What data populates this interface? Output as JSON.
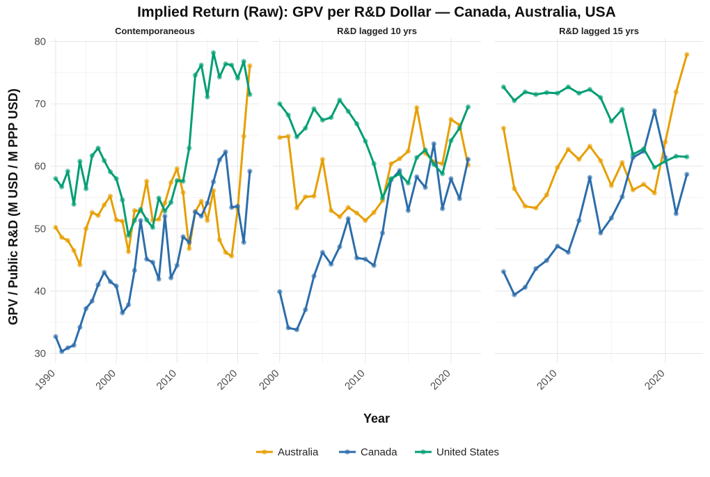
{
  "chart_data": {
    "type": "line",
    "title": "Implied Return (Raw): GPV per R&D Dollar — Canada, Australia, USA",
    "xlabel": "Year",
    "ylabel": "GPV / Public R&D (M USD / M PPP USD)",
    "ylim": [
      28.5,
      80.5
    ],
    "y_ticks": [
      30,
      40,
      50,
      60,
      70,
      80
    ],
    "grid": true,
    "legend_position": "bottom",
    "legend": [
      {
        "name": "Australia",
        "color": "#E69F00"
      },
      {
        "name": "Canada",
        "color": "#2C6DAA"
      },
      {
        "name": "United States",
        "color": "#009E73"
      }
    ],
    "panels": [
      {
        "strip": "Contemporaneous",
        "xlim": [
          1989.2,
          2023.5
        ],
        "x_ticks": [
          1990,
          2000,
          2010,
          2020
        ],
        "series": [
          {
            "name": "Australia",
            "x": [
              1990,
              1991,
              1992,
              1993,
              1994,
              1995,
              1996,
              1997,
              1998,
              1999,
              2000,
              2001,
              2002,
              2003,
              2004,
              2005,
              2006,
              2007,
              2008,
              2009,
              2010,
              2011,
              2012,
              2013,
              2014,
              2015,
              2016,
              2017,
              2018,
              2019,
              2020,
              2021,
              2022
            ],
            "y": [
              50.2,
              48.6,
              48.1,
              46.5,
              44.2,
              50.0,
              52.6,
              52.1,
              53.8,
              55.2,
              51.4,
              51.2,
              46.3,
              52.9,
              52.8,
              57.6,
              51.3,
              51.5,
              54.1,
              57.4,
              59.6,
              55.8,
              46.8,
              52.7,
              54.4,
              51.3,
              56.1,
              48.2,
              46.2,
              45.6,
              53.2,
              64.8,
              76.1
            ]
          },
          {
            "name": "Canada",
            "x": [
              1990,
              1991,
              1992,
              1993,
              1994,
              1995,
              1996,
              1997,
              1998,
              1999,
              2000,
              2001,
              2002,
              2003,
              2004,
              2005,
              2006,
              2007,
              2008,
              2009,
              2010,
              2011,
              2012,
              2013,
              2014,
              2015,
              2016,
              2017,
              2018,
              2019,
              2020,
              2021,
              2022
            ],
            "y": [
              32.7,
              30.3,
              30.9,
              31.3,
              34.2,
              37.2,
              38.4,
              41.0,
              43.0,
              41.5,
              40.8,
              36.5,
              37.8,
              43.3,
              51.3,
              45.1,
              44.6,
              41.9,
              52.0,
              42.1,
              44.1,
              48.7,
              47.8,
              52.7,
              52.0,
              54.1,
              57.5,
              61.0,
              62.3,
              53.4,
              53.6,
              47.8,
              59.2
            ]
          },
          {
            "name": "United States",
            "x": [
              1990,
              1991,
              1992,
              1993,
              1994,
              1995,
              1996,
              1997,
              1998,
              1999,
              2000,
              2001,
              2002,
              2003,
              2004,
              2005,
              2006,
              2007,
              2008,
              2009,
              2010,
              2011,
              2012,
              2013,
              2014,
              2015,
              2016,
              2017,
              2018,
              2019,
              2020,
              2021,
              2022
            ],
            "y": [
              58.0,
              56.7,
              59.2,
              53.9,
              60.8,
              56.4,
              61.7,
              62.9,
              60.9,
              59.1,
              58.0,
              54.6,
              48.9,
              51.3,
              53.1,
              51.4,
              50.2,
              54.9,
              52.8,
              54.2,
              57.7,
              57.6,
              62.9,
              74.6,
              76.2,
              71.1,
              78.2,
              74.3,
              76.4,
              76.2,
              74.1,
              76.8,
              71.5
            ]
          }
        ]
      },
      {
        "strip": "R&D lagged 10 yrs",
        "xlim": [
          1999.2,
          2023.5
        ],
        "x_ticks": [
          2000,
          2010,
          2020
        ],
        "series": [
          {
            "name": "Australia",
            "x": [
              2000,
              2001,
              2002,
              2003,
              2004,
              2005,
              2006,
              2007,
              2008,
              2009,
              2010,
              2011,
              2012,
              2013,
              2014,
              2015,
              2016,
              2017,
              2018,
              2019,
              2020,
              2021,
              2022
            ],
            "y": [
              64.6,
              64.8,
              53.3,
              55.1,
              55.2,
              61.1,
              52.9,
              51.9,
              53.4,
              52.5,
              51.3,
              52.6,
              54.5,
              60.4,
              61.2,
              62.4,
              69.4,
              62.1,
              60.7,
              60.4,
              67.5,
              66.6,
              60.2
            ]
          },
          {
            "name": "Canada",
            "x": [
              2000,
              2001,
              2002,
              2003,
              2004,
              2005,
              2006,
              2007,
              2008,
              2009,
              2010,
              2011,
              2012,
              2013,
              2014,
              2015,
              2016,
              2017,
              2018,
              2019,
              2020,
              2021,
              2022
            ],
            "y": [
              39.9,
              34.1,
              33.8,
              37.0,
              42.4,
              46.2,
              44.3,
              47.1,
              51.6,
              45.3,
              45.1,
              44.1,
              49.3,
              57.8,
              59.3,
              52.9,
              58.3,
              56.6,
              63.6,
              53.2,
              58.0,
              54.8,
              61.1
            ]
          },
          {
            "name": "United States",
            "x": [
              2000,
              2001,
              2002,
              2003,
              2004,
              2005,
              2006,
              2007,
              2008,
              2009,
              2010,
              2011,
              2012,
              2013,
              2014,
              2015,
              2016,
              2017,
              2018,
              2019,
              2020,
              2021,
              2022
            ],
            "y": [
              70.0,
              68.2,
              64.7,
              66.1,
              69.2,
              67.4,
              67.8,
              70.6,
              68.8,
              66.8,
              64.0,
              60.4,
              54.9,
              58.0,
              58.8,
              57.3,
              61.4,
              62.6,
              60.3,
              58.8,
              64.1,
              66.1,
              69.5
            ]
          }
        ]
      },
      {
        "strip": "R&D lagged 15 yrs",
        "xlim": [
          2004.2,
          2023.5
        ],
        "x_ticks": [
          2010,
          2020
        ],
        "series": [
          {
            "name": "Australia",
            "x": [
              2005,
              2006,
              2007,
              2008,
              2009,
              2010,
              2011,
              2012,
              2013,
              2014,
              2015,
              2016,
              2017,
              2018,
              2019,
              2020,
              2021,
              2022
            ],
            "y": [
              66.1,
              56.4,
              53.6,
              53.3,
              55.4,
              59.8,
              62.7,
              61.1,
              63.2,
              60.9,
              56.9,
              60.6,
              56.2,
              57.1,
              55.7,
              63.9,
              71.9,
              77.9
            ]
          },
          {
            "name": "Canada",
            "x": [
              2005,
              2006,
              2007,
              2008,
              2009,
              2010,
              2011,
              2012,
              2013,
              2014,
              2015,
              2016,
              2017,
              2018,
              2019,
              2020,
              2021,
              2022
            ],
            "y": [
              43.1,
              39.4,
              40.6,
              43.6,
              44.9,
              47.2,
              46.2,
              51.3,
              58.2,
              49.3,
              51.7,
              55.1,
              61.4,
              62.4,
              68.9,
              61.4,
              52.4,
              58.7
            ]
          },
          {
            "name": "United States",
            "x": [
              2005,
              2006,
              2007,
              2008,
              2009,
              2010,
              2011,
              2012,
              2013,
              2014,
              2015,
              2016,
              2017,
              2018,
              2019,
              2020,
              2021,
              2022
            ],
            "y": [
              72.7,
              70.5,
              71.9,
              71.5,
              71.8,
              71.7,
              72.7,
              71.7,
              72.3,
              71.0,
              67.2,
              69.1,
              61.9,
              62.8,
              59.8,
              60.8,
              61.6,
              61.5
            ]
          }
        ]
      }
    ]
  }
}
